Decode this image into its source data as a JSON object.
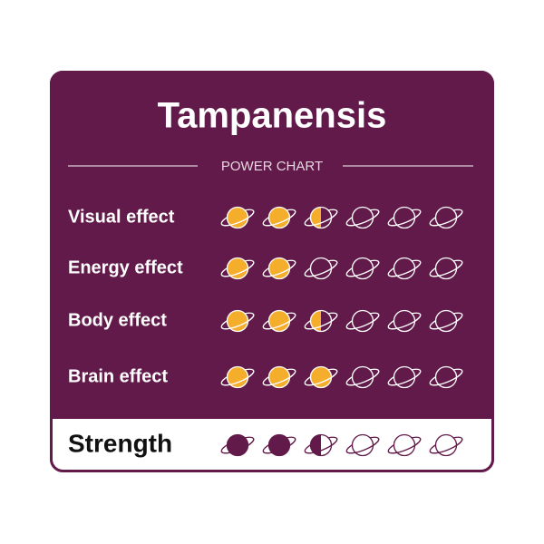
{
  "title": "Tampanensis",
  "subtitle": "POWER CHART",
  "scale_max": 6,
  "rows": [
    {
      "label": "Visual effect",
      "value": 2.5
    },
    {
      "label": "Energy effect",
      "value": 2
    },
    {
      "label": "Body effect",
      "value": 2.5
    },
    {
      "label": "Brain effect",
      "value": 3
    }
  ],
  "strength": {
    "label": "Strength",
    "value": 2.5
  }
}
